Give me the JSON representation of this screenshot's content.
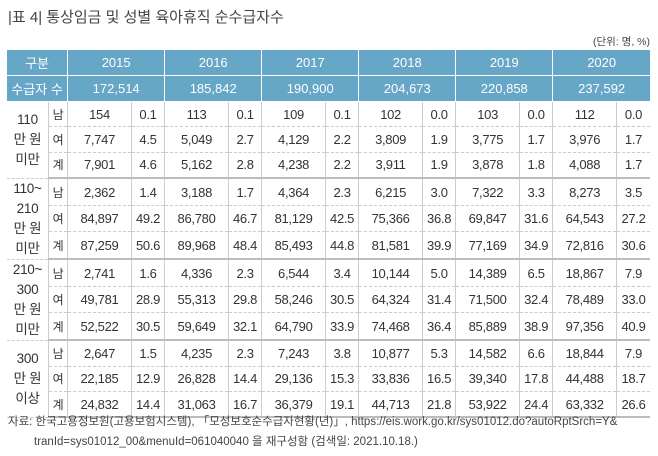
{
  "title": "|표 4| 통상임금 및 성별 육아휴직 순수급자수",
  "unit": "(단위: 명, %)",
  "header": {
    "category_label": "구분",
    "years": [
      "2015",
      "2016",
      "2017",
      "2018",
      "2019",
      "2020"
    ],
    "recipients_label": "수급자 수",
    "recipients": [
      "172,514",
      "185,842",
      "190,900",
      "204,673",
      "220,858",
      "237,592"
    ]
  },
  "groups": [
    {
      "label": "110\n만 원\n미만",
      "rows": [
        {
          "sex": "남",
          "cells": [
            "154",
            "0.1",
            "113",
            "0.1",
            "109",
            "0.1",
            "102",
            "0.0",
            "103",
            "0.0",
            "112",
            "0.0"
          ]
        },
        {
          "sex": "여",
          "cells": [
            "7,747",
            "4.5",
            "5,049",
            "2.7",
            "4,129",
            "2.2",
            "3,809",
            "1.9",
            "3,775",
            "1.7",
            "3,976",
            "1.7"
          ]
        },
        {
          "sex": "계",
          "cells": [
            "7,901",
            "4.6",
            "5,162",
            "2.8",
            "4,238",
            "2.2",
            "3,911",
            "1.9",
            "3,878",
            "1.8",
            "4,088",
            "1.7"
          ]
        }
      ]
    },
    {
      "label": "110~\n210\n만 원\n미만",
      "rows": [
        {
          "sex": "남",
          "cells": [
            "2,362",
            "1.4",
            "3,188",
            "1.7",
            "4,364",
            "2.3",
            "6,215",
            "3.0",
            "7,322",
            "3.3",
            "8,273",
            "3.5"
          ]
        },
        {
          "sex": "여",
          "cells": [
            "84,897",
            "49.2",
            "86,780",
            "46.7",
            "81,129",
            "42.5",
            "75,366",
            "36.8",
            "69,847",
            "31.6",
            "64,543",
            "27.2"
          ]
        },
        {
          "sex": "계",
          "cells": [
            "87,259",
            "50.6",
            "89,968",
            "48.4",
            "85,493",
            "44.8",
            "81,581",
            "39.9",
            "77,169",
            "34.9",
            "72,816",
            "30.6"
          ]
        }
      ]
    },
    {
      "label": "210~\n300\n만 원\n미만",
      "rows": [
        {
          "sex": "남",
          "cells": [
            "2,741",
            "1.6",
            "4,336",
            "2.3",
            "6,544",
            "3.4",
            "10,144",
            "5.0",
            "14,389",
            "6.5",
            "18,867",
            "7.9"
          ]
        },
        {
          "sex": "여",
          "cells": [
            "49,781",
            "28.9",
            "55,313",
            "29.8",
            "58,246",
            "30.5",
            "64,324",
            "31.4",
            "71,500",
            "32.4",
            "78,489",
            "33.0"
          ]
        },
        {
          "sex": "계",
          "cells": [
            "52,522",
            "30.5",
            "59,649",
            "32.1",
            "64,790",
            "33.9",
            "74,468",
            "36.4",
            "85,889",
            "38.9",
            "97,356",
            "40.9"
          ]
        }
      ]
    },
    {
      "label": "300\n만 원\n이상",
      "rows": [
        {
          "sex": "남",
          "cells": [
            "2,647",
            "1.5",
            "4,235",
            "2.3",
            "7,243",
            "3.8",
            "10,877",
            "5.3",
            "14,582",
            "6.6",
            "18,844",
            "7.9"
          ]
        },
        {
          "sex": "여",
          "cells": [
            "22,185",
            "12.9",
            "26,828",
            "14.4",
            "29,136",
            "15.3",
            "33,836",
            "16.5",
            "39,340",
            "17.8",
            "44,488",
            "18.7"
          ]
        },
        {
          "sex": "계",
          "cells": [
            "24,832",
            "14.4",
            "31,063",
            "16.7",
            "36,379",
            "19.1",
            "44,713",
            "21.8",
            "53,922",
            "24.4",
            "63,332",
            "26.6"
          ]
        }
      ]
    }
  ],
  "source": {
    "line1": "자료: 한국고용정보원(고용보험시스템), 「모성보호순수급자현황(년)」, https://eis.work.go.kr/sys01012.do?autoRptSrch=Y&",
    "line2": "tranId=sys01012_00&menuId=061040040 을 재구성함 (검색일: 2021.10.18.)"
  }
}
